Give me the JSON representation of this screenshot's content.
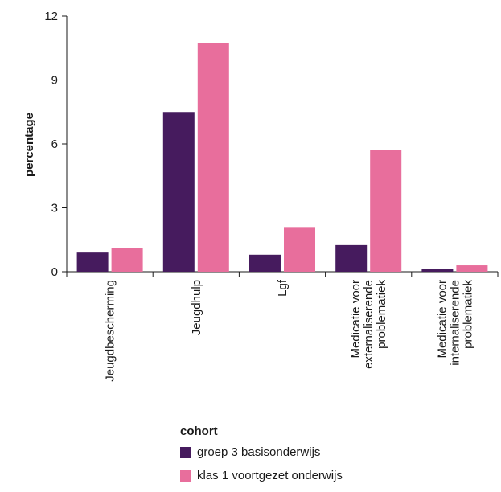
{
  "chart_data": {
    "type": "bar",
    "title": "",
    "xlabel": "",
    "ylabel": "percentage",
    "ylim": [
      0,
      12
    ],
    "yticks": [
      0,
      3,
      6,
      9,
      12
    ],
    "grid": false,
    "legend_position": "bottom",
    "categories": [
      [
        "Jeugdbescherming"
      ],
      [
        "Jeugdhulp"
      ],
      [
        "Lgf"
      ],
      [
        "Medicatie voor",
        "externaliserende",
        "problematiek"
      ],
      [
        "Medicatie voor",
        "internaliserende",
        "problematiek"
      ]
    ],
    "series": [
      {
        "name": "groep 3 basisonderwijs",
        "color": "#461b5e",
        "values": [
          0.9,
          7.5,
          0.8,
          1.25,
          0.12
        ]
      },
      {
        "name": "klas 1 voortgezet onderwijs",
        "color": "#e86e9c",
        "values": [
          1.1,
          10.75,
          2.1,
          5.7,
          0.3
        ]
      }
    ]
  },
  "legend": {
    "title": "cohort",
    "items": [
      {
        "label": "groep 3 basisonderwijs",
        "color": "#461b5e"
      },
      {
        "label": "klas 1 voortgezet onderwijs",
        "color": "#e86e9c"
      }
    ]
  }
}
